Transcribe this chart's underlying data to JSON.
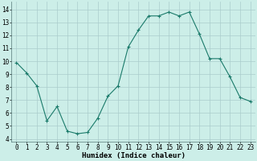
{
  "x": [
    0,
    1,
    2,
    3,
    4,
    5,
    6,
    7,
    8,
    9,
    10,
    11,
    12,
    13,
    14,
    15,
    16,
    17,
    18,
    19,
    20,
    21,
    22,
    23
  ],
  "y": [
    9.9,
    9.1,
    8.1,
    5.4,
    6.5,
    4.6,
    4.4,
    4.5,
    5.6,
    7.3,
    8.1,
    11.1,
    12.4,
    13.5,
    13.5,
    13.8,
    13.5,
    13.8,
    12.1,
    10.2,
    10.2,
    8.8,
    7.2,
    6.9
  ],
  "line_color": "#1a7a6a",
  "marker": "+",
  "marker_size": 3,
  "marker_lw": 0.8,
  "line_width": 0.8,
  "bg_color": "#cceee8",
  "grid_color": "#aacccc",
  "xlabel": "Humidex (Indice chaleur)",
  "xlim": [
    -0.5,
    23.5
  ],
  "ylim": [
    3.8,
    14.6
  ],
  "yticks": [
    4,
    5,
    6,
    7,
    8,
    9,
    10,
    11,
    12,
    13,
    14
  ],
  "xticks": [
    0,
    1,
    2,
    3,
    4,
    5,
    6,
    7,
    8,
    9,
    10,
    11,
    12,
    13,
    14,
    15,
    16,
    17,
    18,
    19,
    20,
    21,
    22,
    23
  ],
  "xlabel_fontsize": 6.5,
  "tick_fontsize": 5.5
}
